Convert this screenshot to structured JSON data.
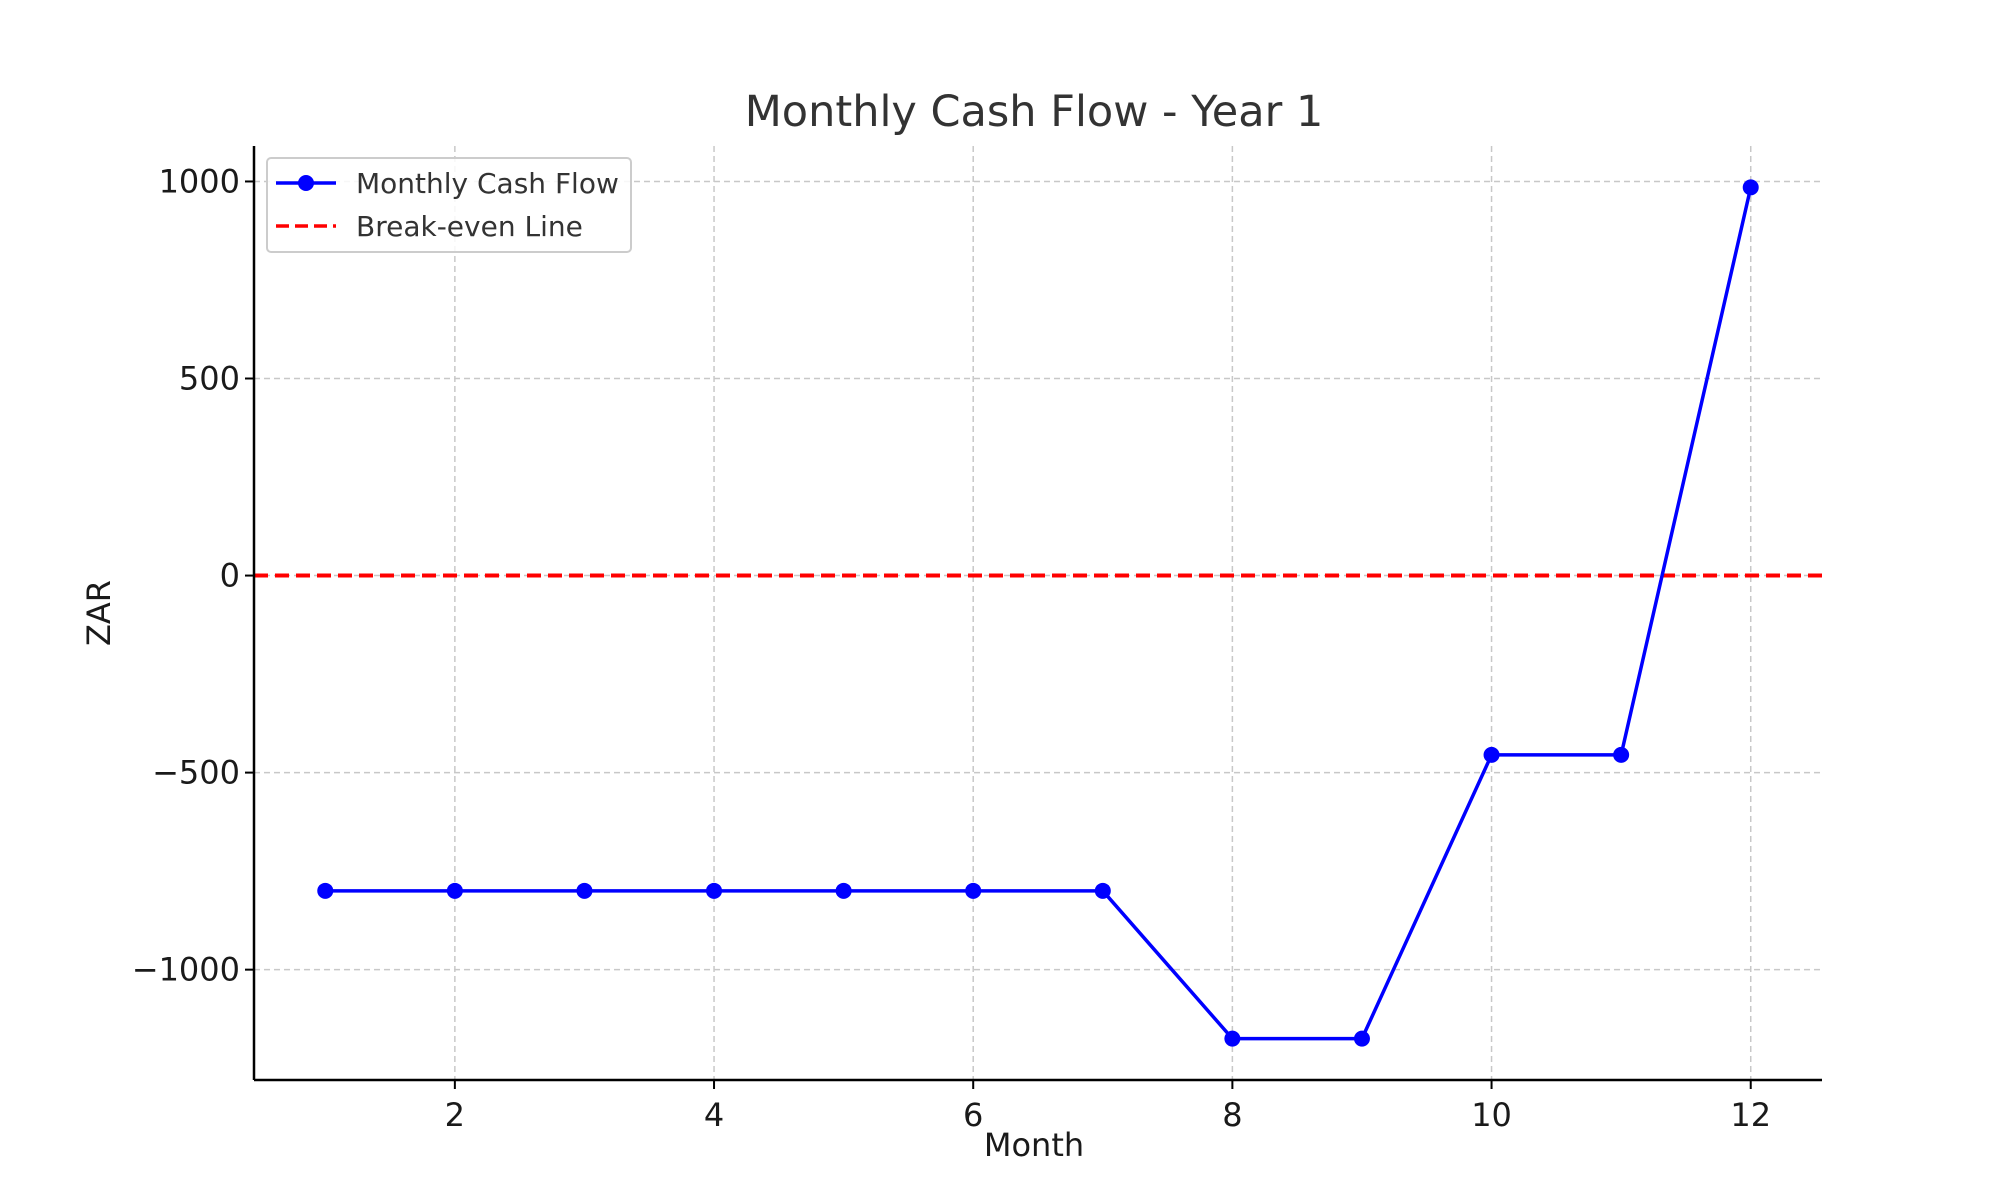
{
  "chart_data": {
    "type": "line",
    "title": "Monthly Cash Flow - Year 1",
    "xlabel": "Month",
    "ylabel": "ZAR",
    "xlim": [
      0.45,
      12.55
    ],
    "ylim": [
      -1280,
      1090
    ],
    "xticks": [
      2,
      4,
      6,
      8,
      10,
      12
    ],
    "xtick_labels": [
      "2",
      "4",
      "6",
      "8",
      "10",
      "12"
    ],
    "yticks": [
      -1000,
      -500,
      0,
      500,
      1000
    ],
    "ytick_labels": [
      "−1000",
      "−500",
      "0",
      "500",
      "1000"
    ],
    "grid": true,
    "legend_position": "top-left",
    "series": [
      {
        "name": "Monthly Cash Flow",
        "color": "#0000ff",
        "style": "solid-with-markers",
        "x": [
          1,
          2,
          3,
          4,
          5,
          6,
          7,
          8,
          9,
          10,
          11,
          12
        ],
        "y": [
          -800,
          -800,
          -800,
          -800,
          -800,
          -800,
          -800,
          -1175,
          -1175,
          -455,
          -455,
          985
        ]
      },
      {
        "name": "Break-even Line",
        "color": "#ff0000",
        "style": "dashed",
        "y_constant": 0
      }
    ]
  }
}
